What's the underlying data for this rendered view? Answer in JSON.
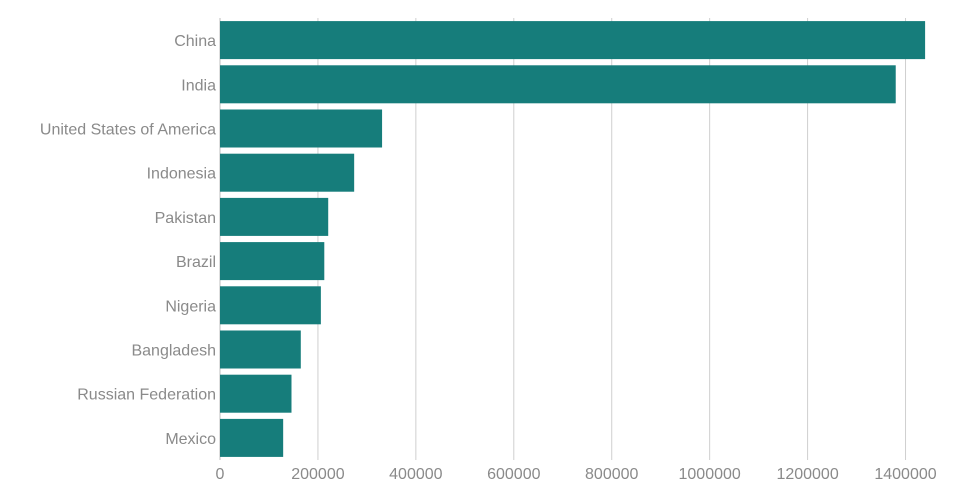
{
  "chart_data": {
    "type": "bar",
    "orientation": "horizontal",
    "title": "",
    "xlabel": "",
    "ylabel": "",
    "categories": [
      "China",
      "India",
      "United States of America",
      "Indonesia",
      "Pakistan",
      "Brazil",
      "Nigeria",
      "Bangladesh",
      "Russian Federation",
      "Mexico"
    ],
    "values": [
      1440000,
      1380000,
      331000,
      274000,
      221000,
      213000,
      206000,
      165000,
      146000,
      129000
    ],
    "xlim": [
      0,
      1450000
    ],
    "x_ticks": [
      0,
      200000,
      400000,
      600000,
      800000,
      1000000,
      1200000,
      1400000
    ],
    "x_tick_labels": [
      "0",
      "200000",
      "400000",
      "600000",
      "800000",
      "1000000",
      "1200000",
      "1400000"
    ],
    "grid": "vertical",
    "legend": "none",
    "bar_color": "#167d7b"
  }
}
